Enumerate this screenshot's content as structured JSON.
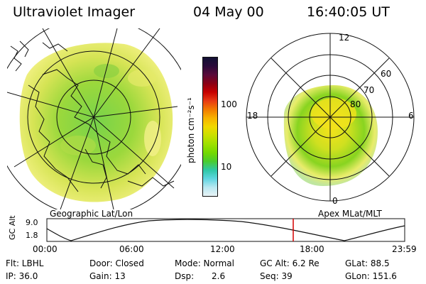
{
  "header": {
    "title": "Ultraviolet Imager",
    "date": "04 May 00",
    "time": "16:40:05 UT"
  },
  "left_panel": {
    "caption": "Geographic Lat/Lon"
  },
  "right_panel": {
    "caption": "Apex MLat/MLT",
    "mlt_labels": {
      "top": "12",
      "left": "18",
      "right": "6",
      "bottom": "0"
    },
    "lat_labels": [
      "60",
      "70",
      "80"
    ]
  },
  "colorbar": {
    "unit_label": "photon cm⁻²s⁻¹",
    "tick_labels": [
      "100",
      "10"
    ],
    "colors": [
      "#111133",
      "#2a0a3a",
      "#5a0a3a",
      "#8a0014",
      "#c60000",
      "#e83a14",
      "#f27a00",
      "#f7b300",
      "#f0d800",
      "#c9e000",
      "#9ee000",
      "#73d900",
      "#49cc2e",
      "#2ec8a6",
      "#5ed5e0",
      "#b9e8f1",
      "#e9f3f6"
    ]
  },
  "altitude_plot": {
    "axis_label": "GC Alt",
    "y_ticks": [
      "9.0",
      "1.8"
    ],
    "x_ticks": [
      "00:00",
      "06:00",
      "12:00",
      "18:00",
      "23:59"
    ],
    "current_time_marker": "16:40",
    "marker_color": "#d40000"
  },
  "status": {
    "flt": "Flt: LBHL",
    "ip": "IP: 36.0",
    "door": "Door: Closed",
    "gain": "Gain: 13",
    "mode": "Mode: Normal",
    "dsp_label": "Dsp:",
    "dsp_value": "2.6",
    "gc_alt": "GC Alt: 6.2 Re",
    "seq": "Seq: 39",
    "glat": "GLat: 88.5",
    "glon": "GLon: 151.6"
  }
}
